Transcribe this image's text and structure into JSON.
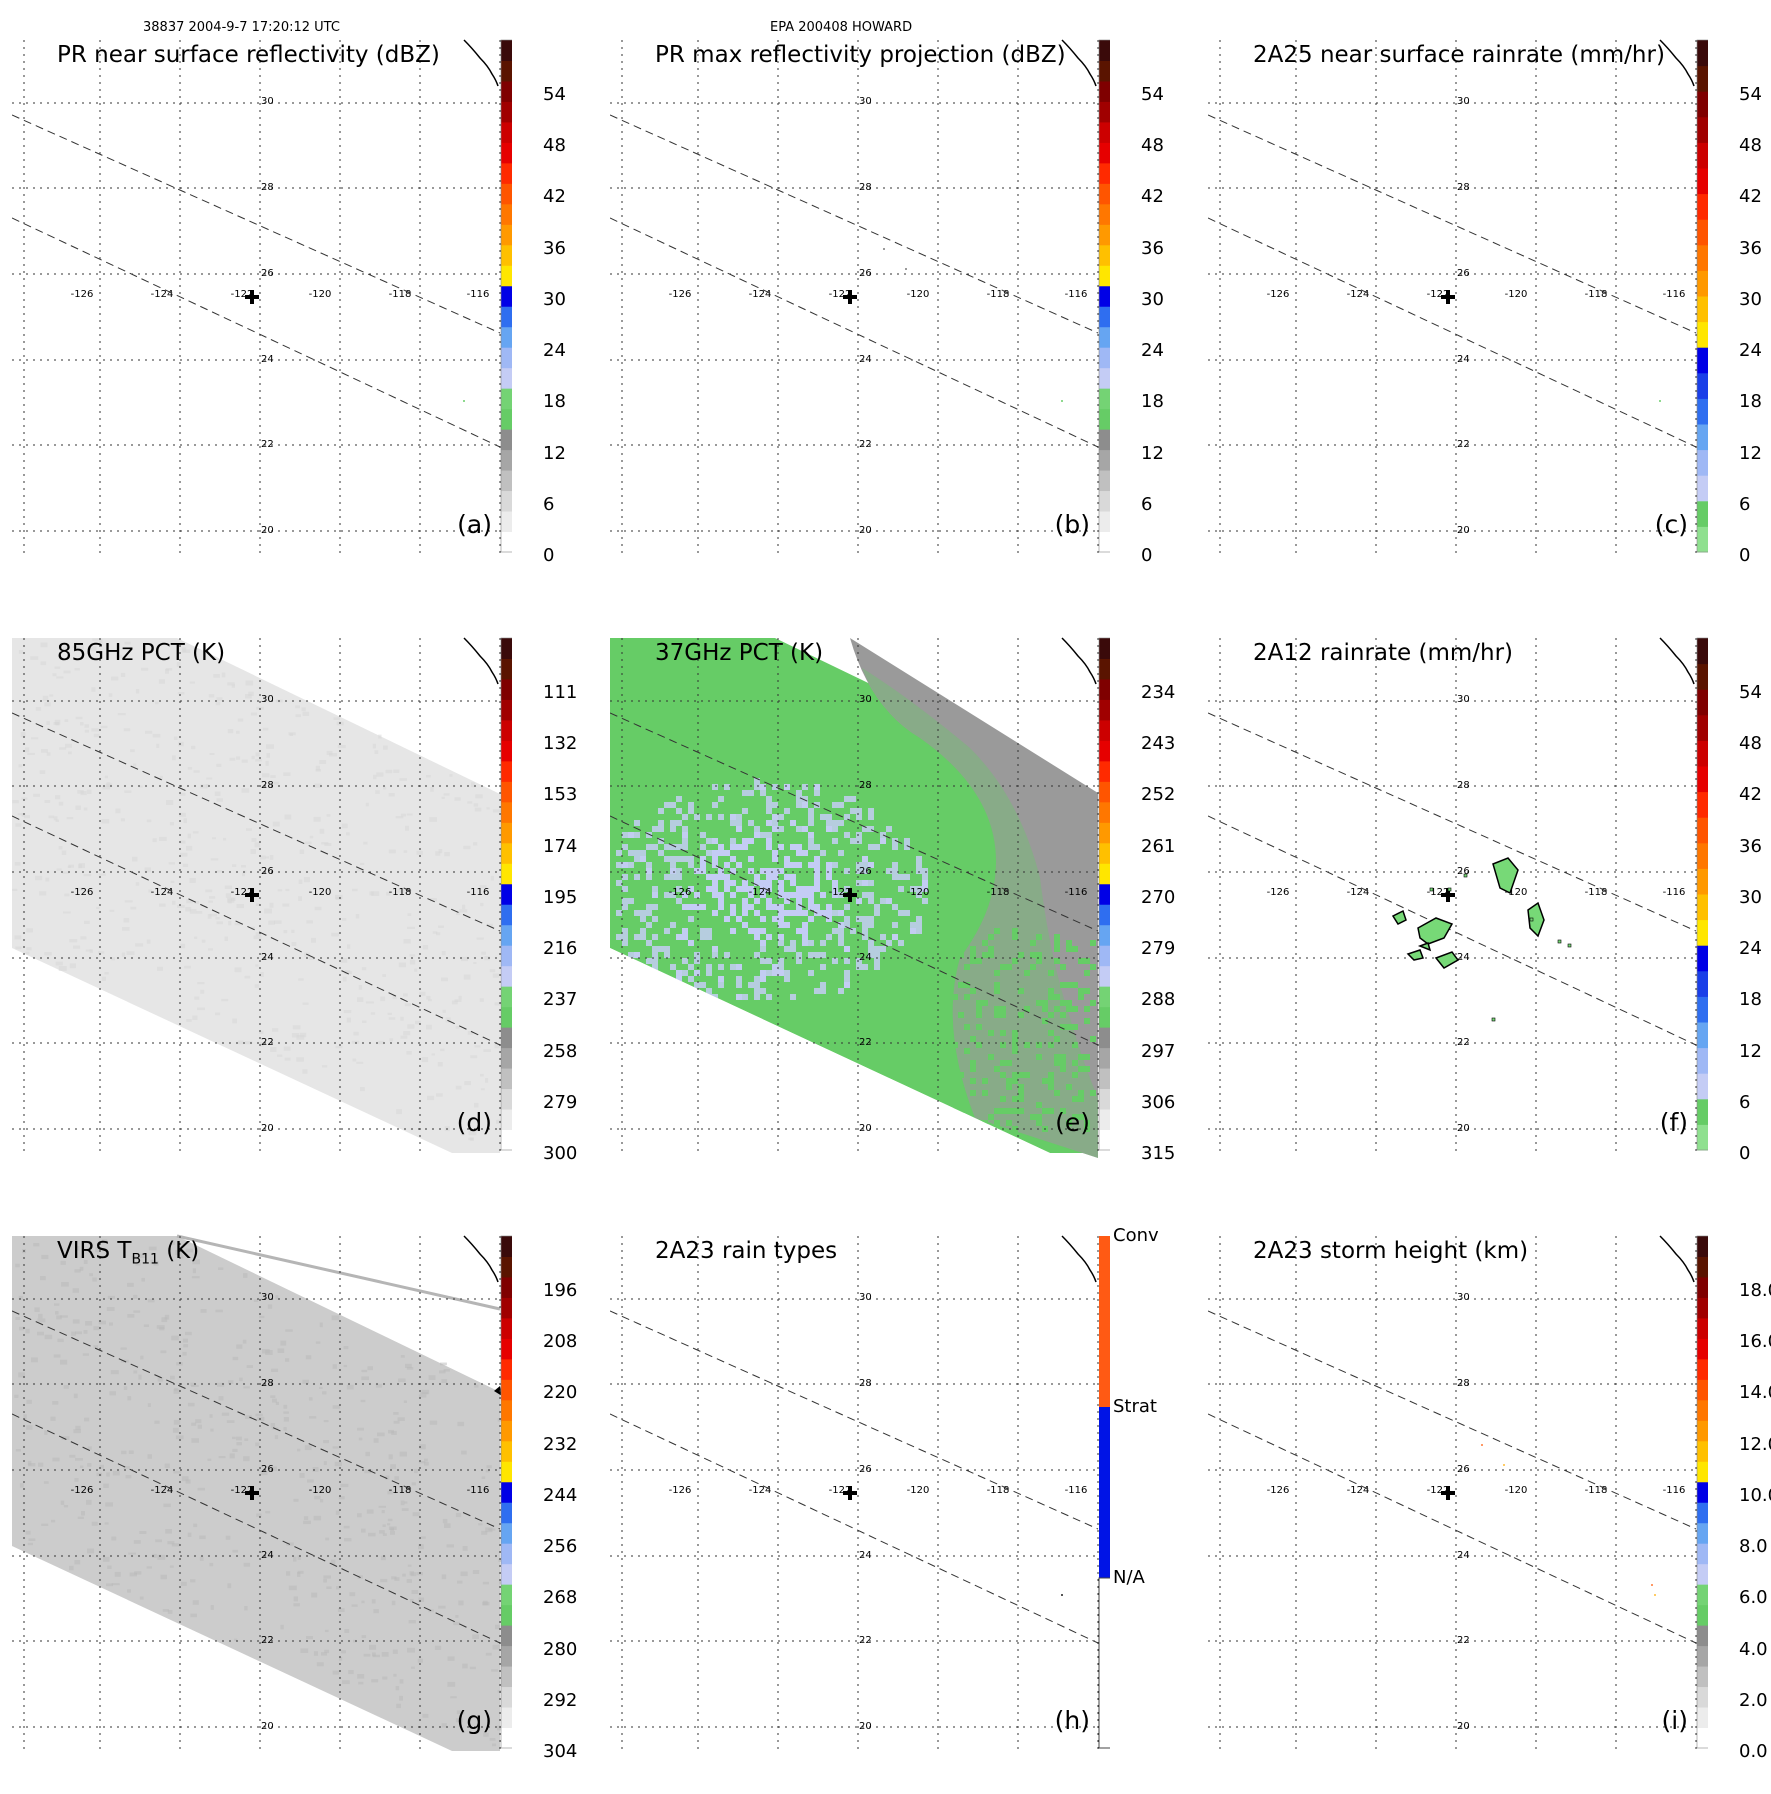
{
  "header": {
    "orbit_time": "38837 2004-9-7 17:20:12 UTC",
    "storm": "EPA 200408 HOWARD"
  },
  "grid": {
    "lat_labels": [
      "30",
      "28",
      "26",
      "24",
      "22",
      "20"
    ],
    "lon_labels": [
      "-126",
      "-124",
      "-122",
      "-120",
      "-118",
      "-116"
    ]
  },
  "panels": [
    {
      "id": "a",
      "title": "PR near surface reflectivity (dBZ)",
      "label": "(a)",
      "colorbar": {
        "ticks": [
          "54",
          "48",
          "42",
          "36",
          "30",
          "24",
          "18",
          "12",
          "6",
          "0"
        ]
      }
    },
    {
      "id": "b",
      "title": "PR max reflectivity projection (dBZ)",
      "label": "(b)",
      "colorbar": {
        "ticks": [
          "54",
          "48",
          "42",
          "36",
          "30",
          "24",
          "18",
          "12",
          "6",
          "0"
        ]
      }
    },
    {
      "id": "c",
      "title": "2A25 near surface rainrate (mm/hr)",
      "label": "(c)",
      "colorbar": {
        "ticks": [
          "54",
          "48",
          "42",
          "36",
          "30",
          "24",
          "18",
          "12",
          "6",
          "0"
        ]
      }
    },
    {
      "id": "d",
      "title": "85GHz PCT (K)",
      "label": "(d)",
      "colorbar": {
        "ticks": [
          "111",
          "132",
          "153",
          "174",
          "195",
          "216",
          "237",
          "258",
          "279",
          "300"
        ]
      }
    },
    {
      "id": "e",
      "title": "37GHz PCT (K)",
      "label": "(e)",
      "colorbar": {
        "ticks": [
          "234",
          "243",
          "252",
          "261",
          "270",
          "279",
          "288",
          "297",
          "306",
          "315"
        ]
      }
    },
    {
      "id": "f",
      "title": "2A12 rainrate (mm/hr)",
      "label": "(f)",
      "colorbar": {
        "ticks": [
          "54",
          "48",
          "42",
          "36",
          "30",
          "24",
          "18",
          "12",
          "6",
          "0"
        ]
      }
    },
    {
      "id": "g",
      "title_main": "VIRS T",
      "title_sub": "B11",
      "title_unit": " (K)",
      "label": "(g)",
      "colorbar": {
        "ticks": [
          "196",
          "208",
          "220",
          "232",
          "244",
          "256",
          "268",
          "280",
          "292",
          "304"
        ]
      }
    },
    {
      "id": "h",
      "title": "2A23 rain types",
      "label": "(h)",
      "colorbar": {
        "ticks": [
          "Conv",
          "Strat",
          "N/A"
        ]
      }
    },
    {
      "id": "i",
      "title": "2A23 storm height (km)",
      "label": "(i)",
      "colorbar": {
        "ticks": [
          "18.0",
          "16.0",
          "14.0",
          "12.0",
          "10.0",
          "8.0",
          "6.0",
          "4.0",
          "2.0",
          "0.0"
        ]
      }
    }
  ],
  "colors": {
    "swath_light": "#e6e6e6",
    "swath_gray": "#cccccc",
    "green_field": "#66cc66",
    "lavender": "#c4ccf5",
    "dark_gray": "#9a9a9a",
    "rain_green": "#77d977"
  }
}
